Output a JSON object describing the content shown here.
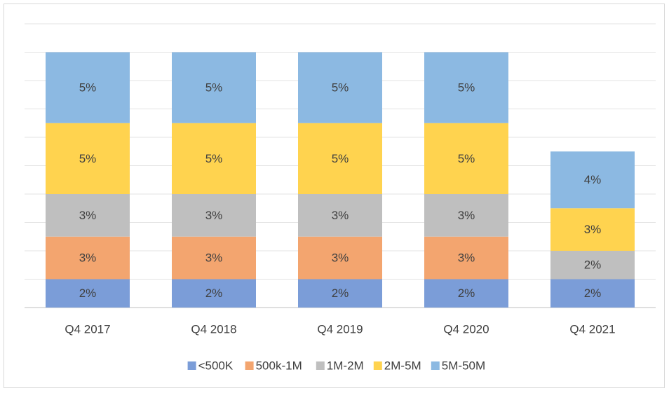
{
  "chart_data": {
    "type": "stacked_bar",
    "categories": [
      "Q4 2017",
      "Q4 2018",
      "Q4 2019",
      "Q4 2020",
      "Q4 2021"
    ],
    "series": [
      {
        "name": "<500K",
        "color": "#7b9dd8",
        "values": [
          2,
          2,
          2,
          2,
          2
        ],
        "value_labels": [
          "2%",
          "2%",
          "2%",
          "2%",
          "2%"
        ]
      },
      {
        "name": "500k-1M",
        "color": "#f3a56f",
        "values": [
          3,
          3,
          3,
          3,
          null
        ],
        "value_labels": [
          "3%",
          "3%",
          "3%",
          "3%",
          null
        ]
      },
      {
        "name": "1M-2M",
        "color": "#bfbfbf",
        "values": [
          3,
          3,
          3,
          3,
          2
        ],
        "value_labels": [
          "3%",
          "3%",
          "3%",
          "3%",
          "2%"
        ]
      },
      {
        "name": "2M-5M",
        "color": "#ffd34f",
        "values": [
          5,
          5,
          5,
          5,
          3
        ],
        "value_labels": [
          "5%",
          "5%",
          "5%",
          "5%",
          "3%"
        ]
      },
      {
        "name": "5M-50M",
        "color": "#8cb9e2",
        "values": [
          5,
          5,
          5,
          5,
          4
        ],
        "value_labels": [
          "5%",
          "5%",
          "5%",
          "5%",
          "4%"
        ]
      }
    ],
    "ylim": [
      0,
      20
    ],
    "yticks": [
      0,
      2,
      4,
      6,
      8,
      10,
      12,
      14,
      16,
      18,
      20
    ],
    "grid": true,
    "legend": "bottom"
  }
}
